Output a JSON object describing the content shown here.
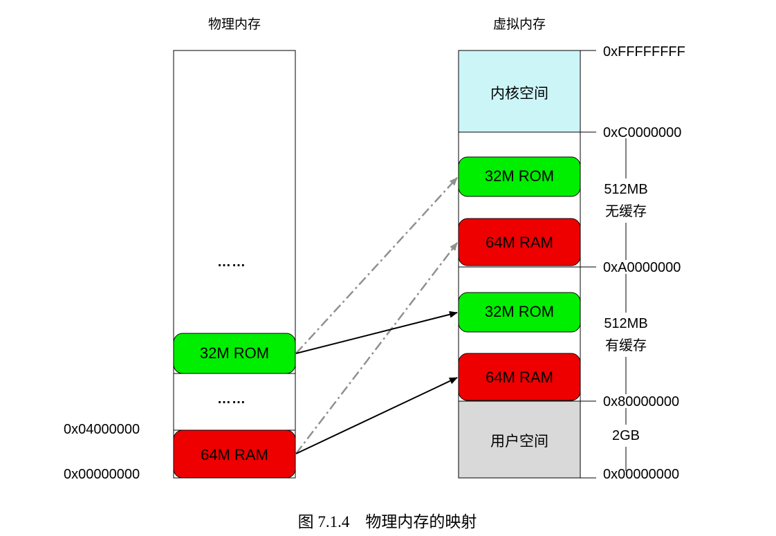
{
  "physical": {
    "title": "物理内存",
    "rom_label": "32M ROM",
    "ram_label": "64M RAM",
    "ellipsis_top": "……",
    "ellipsis_mid": "……",
    "addr_top": "0x04000000",
    "addr_bottom": "0x00000000"
  },
  "virtual": {
    "title": "虚拟内存",
    "kernel_label": "内核空间",
    "user_label": "用户空间",
    "uncached_rom": "32M ROM",
    "uncached_ram": "64M RAM",
    "cached_rom": "32M ROM",
    "cached_ram": "64M RAM",
    "addresses": [
      "0xFFFFFFFF",
      "0xC0000000",
      "0xA0000000",
      "0x80000000",
      "0x00000000"
    ],
    "uncached": {
      "size": "512MB",
      "label": "无缓存"
    },
    "cached": {
      "size": "512MB",
      "label": "有缓存"
    },
    "user_size": "2GB"
  },
  "colors": {
    "rom": "#00ee00",
    "ram": "#ee0000",
    "kernel": "#ccf5f7",
    "user": "#d9d9d9",
    "dashed_arrow": "#909090",
    "solid_arrow": "#000000"
  },
  "caption": "图 7.1.4　物理内存的映射"
}
